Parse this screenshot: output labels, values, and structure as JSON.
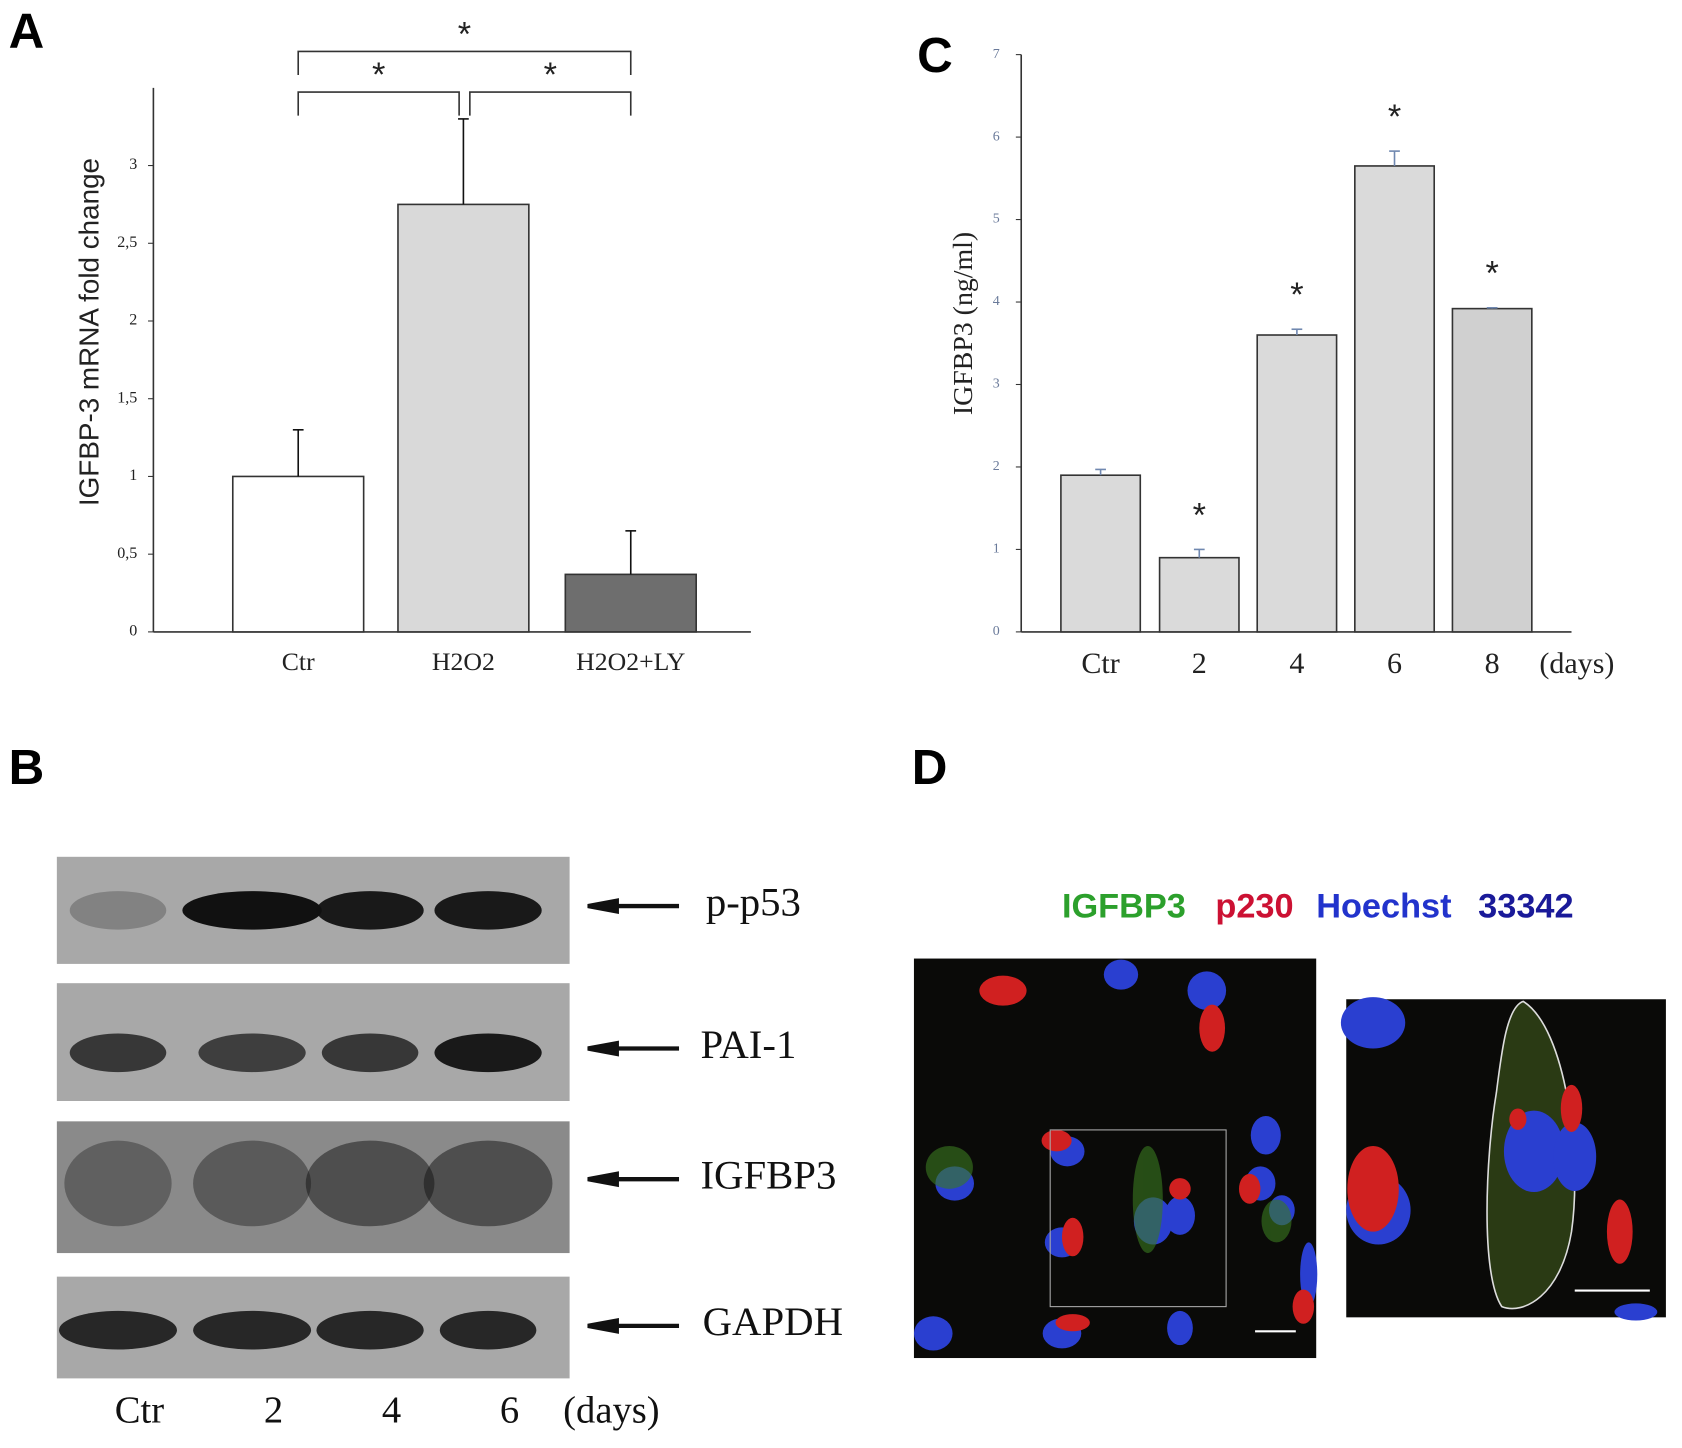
{
  "panel_labels": [
    "A",
    "B",
    "C",
    "D"
  ],
  "chart_data": [
    {
      "type": "bar",
      "ylabel": "IGFBP-3 mRNA fold change",
      "categories": [
        "Ctr",
        "H2O2",
        "H2O2+LY"
      ],
      "values": [
        1,
        2.75,
        0.37
      ],
      "errors": [
        0.3,
        0.55,
        0.28
      ],
      "colors": [
        "#ffffff",
        "#d9d9d9",
        "#6e6e6e"
      ],
      "ylim": [
        0,
        3.5
      ],
      "yticks": [
        0,
        {
          "value": 0.5,
          "label": "0,5"
        },
        1,
        {
          "value": 1.5,
          "label": "1,5"
        },
        2,
        {
          "value": 2.5,
          "label": "2,5"
        },
        3
      ],
      "annotations": [
        "*",
        "*",
        "*"
      ]
    },
    {
      "type": "bar",
      "ylabel": "IGFBP3 (ng/ml)",
      "xlabel": "(days)",
      "categories": [
        "Ctr",
        "2",
        "4",
        "6",
        "8"
      ],
      "values": [
        1.9,
        0.9,
        3.6,
        5.65,
        3.92
      ],
      "errors": [
        0.07,
        0.1,
        0.07,
        0.18,
        0.01
      ],
      "colors": [
        "#dadada",
        "#dadada",
        "#dadada",
        "#dadada",
        "#d0d0d0"
      ],
      "ylim": [
        0,
        7
      ],
      "yticks": [
        0,
        1,
        2,
        3,
        4,
        5,
        6,
        7
      ],
      "value_annotations": [
        null,
        "*",
        "*",
        "*",
        "*"
      ]
    }
  ],
  "blot": {
    "proteins": [
      "p-p53",
      "PAI-1",
      "IGFBP3",
      "GAPDH"
    ],
    "lanes": [
      "Ctr",
      "2",
      "4",
      "6"
    ],
    "unit": "(days)"
  },
  "image": {
    "stains": [
      "IGFBP3",
      "p230",
      "Hoechst",
      "33342"
    ]
  }
}
